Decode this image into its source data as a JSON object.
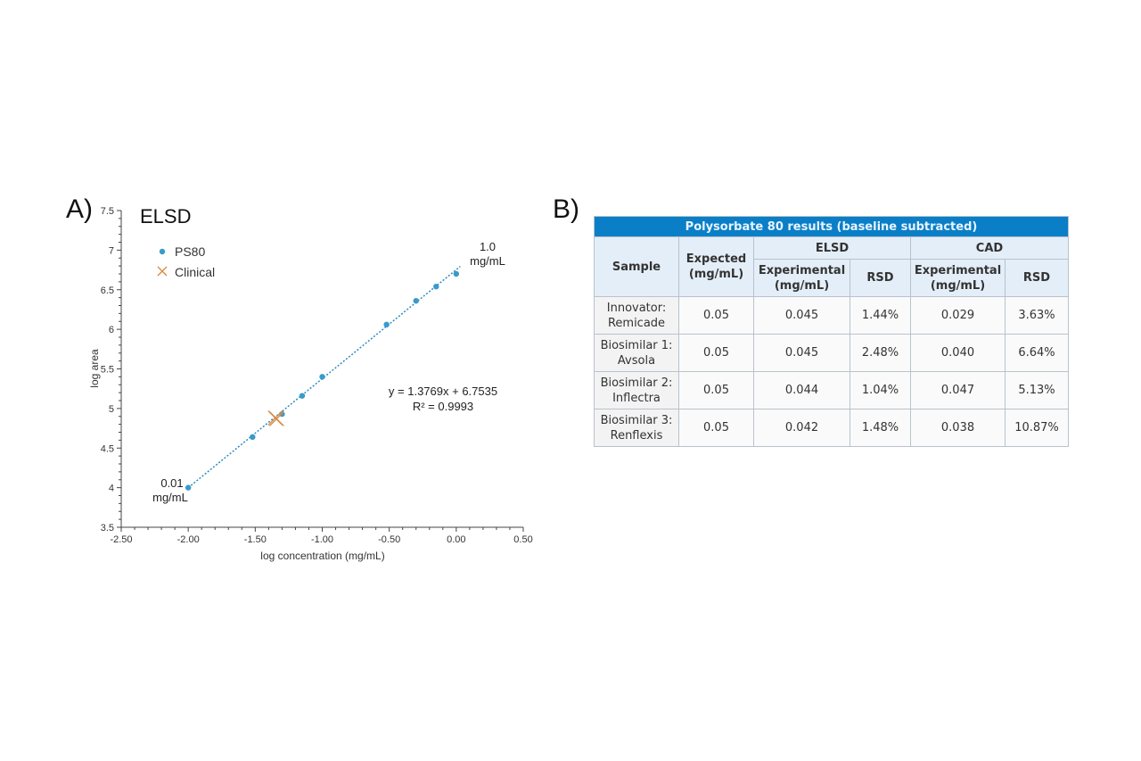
{
  "panel_a_label": "A)",
  "panel_b_label": "B)",
  "chart_data": {
    "type": "scatter",
    "title": "ELSD",
    "xlabel": "log concentration (mg/mL)",
    "ylabel": "log area",
    "xlim": [
      -2.5,
      0.5
    ],
    "ylim": [
      3.5,
      7.5
    ],
    "xticks": [
      "-2.50",
      "-2.00",
      "-1.50",
      "-1.00",
      "-0.50",
      "0.00",
      "0.50"
    ],
    "xtick_values": [
      -2.5,
      -2.0,
      -1.5,
      -1.0,
      -0.5,
      0.0,
      0.5
    ],
    "yticks": [
      "3.5",
      "4",
      "4.5",
      "5",
      "5.5",
      "6",
      "6.5",
      "7",
      "7.5"
    ],
    "ytick_values": [
      3.5,
      4,
      4.5,
      5,
      5.5,
      6,
      6.5,
      7,
      7.5
    ],
    "legend": {
      "placement": "top-left",
      "entries": [
        "PS80",
        "Clinical"
      ]
    },
    "series": [
      {
        "name": "PS80",
        "color": "#3a9ac9",
        "marker": "circle",
        "x": [
          -2.0,
          -1.52,
          -1.3,
          -1.15,
          -1.0,
          -0.52,
          -0.3,
          -0.15,
          0.0
        ],
        "y": [
          4.0,
          4.64,
          4.93,
          5.16,
          5.4,
          6.06,
          6.36,
          6.54,
          6.7
        ]
      },
      {
        "name": "Clinical",
        "color": "#d9893f",
        "marker": "x",
        "x": [
          -1.35,
          -1.34
        ],
        "y": [
          4.88,
          4.87
        ]
      }
    ],
    "trendline": {
      "slope": 1.3769,
      "intercept": 6.7535,
      "x_range": [
        -2.0,
        0.0
      ],
      "color": "#2a8ac0"
    },
    "annotations": {
      "equation": "y = 1.3769x + 6.7535",
      "r2": "R² = 0.9993",
      "high_line1": "1.0",
      "high_line2": "mg/mL",
      "low_line1": "0.01",
      "low_line2": "mg/mL"
    }
  },
  "table": {
    "caption": "Polysorbate 80 results (baseline subtracted)",
    "headers": {
      "sample": "Sample",
      "expected": "Expected (mg/mL)",
      "elsd": "ELSD",
      "cad": "CAD",
      "experimental": "Experimental (mg/mL)",
      "rsd": "RSD"
    },
    "rows": [
      {
        "sample": "Innovator: Remicade",
        "expected": "0.05",
        "elsd_exp": "0.045",
        "elsd_rsd": "1.44%",
        "cad_exp": "0.029",
        "cad_rsd": "3.63%"
      },
      {
        "sample": "Biosimilar 1: Avsola",
        "expected": "0.05",
        "elsd_exp": "0.045",
        "elsd_rsd": "2.48%",
        "cad_exp": "0.040",
        "cad_rsd": "6.64%"
      },
      {
        "sample": "Biosimilar 2: Inflectra",
        "expected": "0.05",
        "elsd_exp": "0.044",
        "elsd_rsd": "1.04%",
        "cad_exp": "0.047",
        "cad_rsd": "5.13%"
      },
      {
        "sample": "Biosimilar 3: Renflexis",
        "expected": "0.05",
        "elsd_exp": "0.042",
        "elsd_rsd": "1.48%",
        "cad_exp": "0.038",
        "cad_rsd": "10.87%"
      }
    ]
  }
}
